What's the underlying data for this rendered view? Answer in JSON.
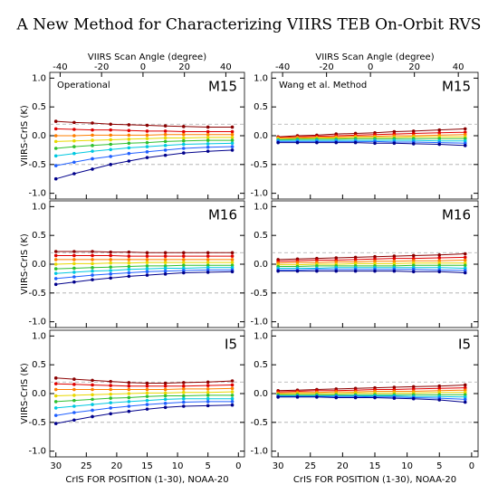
{
  "title": "A New Method for Characterizing VIIRS TEB On-Orbit RVS",
  "chart_data": [
    {
      "type": "line",
      "method": "Operational",
      "band": "M15",
      "ylabel": "VIIRS-CrIS (K)",
      "x2label": "VIIRS Scan Angle (degree)",
      "x2lim": [
        -45,
        49
      ],
      "x2ticks": [
        -40,
        -20,
        0,
        20,
        40
      ],
      "x": [
        30,
        27,
        24,
        21,
        18,
        15,
        12,
        9,
        5,
        1
      ],
      "xlim": [
        31,
        -1
      ],
      "xticks": [
        30,
        25,
        20,
        15,
        10,
        5,
        0
      ],
      "ylim": [
        -1.1,
        1.1
      ],
      "yticks": [
        {
          "value": 1,
          "label": "1.0"
        },
        {
          "value": 0.5,
          "label": "0.5"
        },
        {
          "value": 0,
          "label": "0.0"
        },
        {
          "value": -0.5,
          "label": "-0.5"
        },
        {
          "value": -1,
          "label": "-1.0"
        }
      ],
      "ref_lines": [
        0.2,
        -0.5
      ],
      "series": [
        {
          "color": "#8b0000",
          "values": [
            0.25,
            0.23,
            0.22,
            0.2,
            0.19,
            0.18,
            0.17,
            0.16,
            0.15,
            0.15
          ]
        },
        {
          "color": "#e00000",
          "values": [
            0.12,
            0.11,
            0.1,
            0.1,
            0.09,
            0.08,
            0.08,
            0.07,
            0.07,
            0.07
          ]
        },
        {
          "color": "#ff7f00",
          "values": [
            0.0,
            0.0,
            0.01,
            0.01,
            0.01,
            0.01,
            0.02,
            0.02,
            0.02,
            0.02
          ]
        },
        {
          "color": "#e8d800",
          "values": [
            -0.1,
            -0.09,
            -0.08,
            -0.07,
            -0.06,
            -0.05,
            -0.04,
            -0.04,
            -0.03,
            -0.03
          ]
        },
        {
          "color": "#30c030",
          "values": [
            -0.22,
            -0.19,
            -0.17,
            -0.15,
            -0.13,
            -0.12,
            -0.1,
            -0.09,
            -0.08,
            -0.08
          ]
        },
        {
          "color": "#00c8e0",
          "values": [
            -0.35,
            -0.31,
            -0.27,
            -0.24,
            -0.21,
            -0.19,
            -0.17,
            -0.15,
            -0.14,
            -0.13
          ]
        },
        {
          "color": "#2060ff",
          "values": [
            -0.52,
            -0.46,
            -0.4,
            -0.36,
            -0.31,
            -0.28,
            -0.25,
            -0.22,
            -0.2,
            -0.19
          ]
        },
        {
          "color": "#00008b",
          "values": [
            -0.75,
            -0.66,
            -0.58,
            -0.5,
            -0.44,
            -0.38,
            -0.34,
            -0.3,
            -0.27,
            -0.25
          ]
        }
      ]
    },
    {
      "type": "line",
      "method": "Wang et al. Method",
      "band": "M15",
      "x2label": "VIIRS Scan Angle (degree)",
      "x2lim": [
        -45,
        49
      ],
      "x2ticks": [
        -40,
        -20,
        0,
        20,
        40
      ],
      "x": [
        30,
        27,
        24,
        21,
        18,
        15,
        12,
        9,
        5,
        1
      ],
      "xlim": [
        31,
        -1
      ],
      "xticks": [
        30,
        25,
        20,
        15,
        10,
        5,
        0
      ],
      "ylim": [
        -1.1,
        1.1
      ],
      "yticks": [
        {
          "value": 1,
          "label": "1.0"
        },
        {
          "value": 0.5,
          "label": "0.5"
        },
        {
          "value": 0,
          "label": "0.0"
        },
        {
          "value": -0.5,
          "label": "-0.5"
        },
        {
          "value": -1,
          "label": "-1.0"
        }
      ],
      "ref_lines": [
        0.2,
        -0.5
      ],
      "series": [
        {
          "color": "#8b0000",
          "values": [
            -0.02,
            0.0,
            0.01,
            0.03,
            0.04,
            0.05,
            0.07,
            0.08,
            0.1,
            0.12
          ]
        },
        {
          "color": "#e00000",
          "values": [
            -0.03,
            -0.02,
            -0.01,
            0.0,
            0.01,
            0.02,
            0.03,
            0.04,
            0.05,
            0.06
          ]
        },
        {
          "color": "#ff7f00",
          "values": [
            -0.04,
            -0.03,
            -0.03,
            -0.02,
            -0.01,
            -0.01,
            0.0,
            0.0,
            0.01,
            0.02
          ]
        },
        {
          "color": "#e8d800",
          "values": [
            -0.05,
            -0.05,
            -0.04,
            -0.04,
            -0.03,
            -0.03,
            -0.03,
            -0.02,
            -0.02,
            -0.02
          ]
        },
        {
          "color": "#30c030",
          "values": [
            -0.07,
            -0.06,
            -0.06,
            -0.06,
            -0.05,
            -0.05,
            -0.05,
            -0.05,
            -0.05,
            -0.05
          ]
        },
        {
          "color": "#00c8e0",
          "values": [
            -0.08,
            -0.08,
            -0.08,
            -0.08,
            -0.08,
            -0.08,
            -0.08,
            -0.08,
            -0.09,
            -0.09
          ]
        },
        {
          "color": "#2060ff",
          "values": [
            -0.1,
            -0.1,
            -0.1,
            -0.1,
            -0.1,
            -0.1,
            -0.11,
            -0.11,
            -0.12,
            -0.13
          ]
        },
        {
          "color": "#00008b",
          "values": [
            -0.12,
            -0.12,
            -0.12,
            -0.12,
            -0.12,
            -0.13,
            -0.13,
            -0.14,
            -0.15,
            -0.17
          ]
        }
      ]
    },
    {
      "type": "line",
      "band": "M16",
      "ylabel": "VIIRS-CrIS (K)",
      "x": [
        30,
        27,
        24,
        21,
        18,
        15,
        12,
        9,
        5,
        1
      ],
      "xlim": [
        31,
        -1
      ],
      "xticks": [
        30,
        25,
        20,
        15,
        10,
        5,
        0
      ],
      "ylim": [
        -1.1,
        1.1
      ],
      "yticks": [
        {
          "value": 1,
          "label": "1.0"
        },
        {
          "value": 0.5,
          "label": "0.5"
        },
        {
          "value": 0,
          "label": "0.0"
        },
        {
          "value": -0.5,
          "label": "-0.5"
        },
        {
          "value": -1,
          "label": "-1.0"
        }
      ],
      "ref_lines": [
        0.2,
        -0.5
      ],
      "series": [
        {
          "color": "#8b0000",
          "values": [
            0.22,
            0.22,
            0.22,
            0.21,
            0.21,
            0.2,
            0.2,
            0.2,
            0.2,
            0.2
          ]
        },
        {
          "color": "#e00000",
          "values": [
            0.15,
            0.15,
            0.15,
            0.15,
            0.14,
            0.14,
            0.14,
            0.14,
            0.14,
            0.14
          ]
        },
        {
          "color": "#ff7f00",
          "values": [
            0.08,
            0.08,
            0.08,
            0.08,
            0.08,
            0.08,
            0.08,
            0.08,
            0.08,
            0.08
          ]
        },
        {
          "color": "#e8d800",
          "values": [
            0.0,
            0.01,
            0.01,
            0.02,
            0.02,
            0.03,
            0.03,
            0.03,
            0.03,
            0.03
          ]
        },
        {
          "color": "#30c030",
          "values": [
            -0.08,
            -0.07,
            -0.06,
            -0.05,
            -0.04,
            -0.03,
            -0.03,
            -0.02,
            -0.02,
            -0.02
          ]
        },
        {
          "color": "#00c8e0",
          "values": [
            -0.16,
            -0.14,
            -0.12,
            -0.11,
            -0.09,
            -0.08,
            -0.07,
            -0.07,
            -0.06,
            -0.06
          ]
        },
        {
          "color": "#2060ff",
          "values": [
            -0.25,
            -0.22,
            -0.19,
            -0.17,
            -0.15,
            -0.13,
            -0.12,
            -0.11,
            -0.1,
            -0.1
          ]
        },
        {
          "color": "#00008b",
          "values": [
            -0.35,
            -0.31,
            -0.27,
            -0.24,
            -0.21,
            -0.19,
            -0.17,
            -0.15,
            -0.14,
            -0.13
          ]
        }
      ]
    },
    {
      "type": "line",
      "band": "M16",
      "x": [
        30,
        27,
        24,
        21,
        18,
        15,
        12,
        9,
        5,
        1
      ],
      "xlim": [
        31,
        -1
      ],
      "xticks": [
        30,
        25,
        20,
        15,
        10,
        5,
        0
      ],
      "ylim": [
        -1.1,
        1.1
      ],
      "yticks": [
        {
          "value": 1,
          "label": "1.0"
        },
        {
          "value": 0.5,
          "label": "0.5"
        },
        {
          "value": 0,
          "label": "0.0"
        },
        {
          "value": -0.5,
          "label": "-0.5"
        },
        {
          "value": -1,
          "label": "-1.0"
        }
      ],
      "ref_lines": [
        0.2,
        -0.5
      ],
      "series": [
        {
          "color": "#8b0000",
          "values": [
            0.08,
            0.09,
            0.1,
            0.11,
            0.12,
            0.13,
            0.14,
            0.15,
            0.16,
            0.18
          ]
        },
        {
          "color": "#e00000",
          "values": [
            0.05,
            0.06,
            0.07,
            0.07,
            0.08,
            0.09,
            0.1,
            0.1,
            0.11,
            0.12
          ]
        },
        {
          "color": "#ff7f00",
          "values": [
            0.02,
            0.03,
            0.03,
            0.04,
            0.04,
            0.05,
            0.05,
            0.06,
            0.06,
            0.07
          ]
        },
        {
          "color": "#e8d800",
          "values": [
            -0.01,
            -0.01,
            0.0,
            0.0,
            0.01,
            0.01,
            0.01,
            0.02,
            0.02,
            0.02
          ]
        },
        {
          "color": "#30c030",
          "values": [
            -0.04,
            -0.04,
            -0.03,
            -0.03,
            -0.03,
            -0.03,
            -0.03,
            -0.02,
            -0.02,
            -0.02
          ]
        },
        {
          "color": "#00c8e0",
          "values": [
            -0.07,
            -0.07,
            -0.07,
            -0.06,
            -0.06,
            -0.06,
            -0.06,
            -0.06,
            -0.06,
            -0.07
          ]
        },
        {
          "color": "#2060ff",
          "values": [
            -0.1,
            -0.1,
            -0.09,
            -0.09,
            -0.09,
            -0.09,
            -0.09,
            -0.09,
            -0.1,
            -0.11
          ]
        },
        {
          "color": "#00008b",
          "values": [
            -0.12,
            -0.12,
            -0.12,
            -0.12,
            -0.12,
            -0.12,
            -0.12,
            -0.13,
            -0.13,
            -0.15
          ]
        }
      ]
    },
    {
      "type": "line",
      "band": "I5",
      "ylabel": "VIIRS-CrIS (K)",
      "xlabel": "CrIS FOR POSITION (1-30), NOAA-20",
      "x": [
        30,
        27,
        24,
        21,
        18,
        15,
        12,
        9,
        5,
        1
      ],
      "xlim": [
        31,
        -1
      ],
      "xticks": [
        30,
        25,
        20,
        15,
        10,
        5,
        0
      ],
      "ylim": [
        -1.1,
        1.1
      ],
      "yticks": [
        {
          "value": 1,
          "label": "1.0"
        },
        {
          "value": 0.5,
          "label": "0.5"
        },
        {
          "value": 0,
          "label": "0.0"
        },
        {
          "value": -0.5,
          "label": "-0.5"
        },
        {
          "value": -1,
          "label": "-1.0"
        }
      ],
      "ref_lines": [
        0.2,
        -0.5
      ],
      "series": [
        {
          "color": "#8b0000",
          "values": [
            0.27,
            0.25,
            0.23,
            0.21,
            0.19,
            0.18,
            0.18,
            0.19,
            0.2,
            0.22
          ]
        },
        {
          "color": "#e00000",
          "values": [
            0.17,
            0.16,
            0.15,
            0.14,
            0.13,
            0.13,
            0.13,
            0.13,
            0.14,
            0.15
          ]
        },
        {
          "color": "#ff7f00",
          "values": [
            0.07,
            0.07,
            0.07,
            0.07,
            0.07,
            0.07,
            0.07,
            0.08,
            0.08,
            0.09
          ]
        },
        {
          "color": "#e8d800",
          "values": [
            -0.04,
            -0.03,
            -0.02,
            -0.01,
            0.0,
            0.01,
            0.01,
            0.02,
            0.02,
            0.03
          ]
        },
        {
          "color": "#30c030",
          "values": [
            -0.14,
            -0.12,
            -0.1,
            -0.08,
            -0.07,
            -0.05,
            -0.04,
            -0.04,
            -0.03,
            -0.03
          ]
        },
        {
          "color": "#00c8e0",
          "values": [
            -0.25,
            -0.22,
            -0.19,
            -0.16,
            -0.14,
            -0.12,
            -0.1,
            -0.09,
            -0.09,
            -0.09
          ]
        },
        {
          "color": "#2060ff",
          "values": [
            -0.38,
            -0.33,
            -0.29,
            -0.25,
            -0.22,
            -0.19,
            -0.17,
            -0.15,
            -0.14,
            -0.14
          ]
        },
        {
          "color": "#00008b",
          "values": [
            -0.52,
            -0.46,
            -0.4,
            -0.35,
            -0.31,
            -0.27,
            -0.24,
            -0.22,
            -0.21,
            -0.2
          ]
        }
      ]
    },
    {
      "type": "line",
      "band": "I5",
      "xlabel": "CrIS FOR POSITION (1-30), NOAA-20",
      "x": [
        30,
        27,
        24,
        21,
        18,
        15,
        12,
        9,
        5,
        1
      ],
      "xlim": [
        31,
        -1
      ],
      "xticks": [
        30,
        25,
        20,
        15,
        10,
        5,
        0
      ],
      "ylim": [
        -1.1,
        1.1
      ],
      "yticks": [
        {
          "value": 1,
          "label": "1.0"
        },
        {
          "value": 0.5,
          "label": "0.5"
        },
        {
          "value": 0,
          "label": "0.0"
        },
        {
          "value": -0.5,
          "label": "-0.5"
        },
        {
          "value": -1,
          "label": "-1.0"
        }
      ],
      "ref_lines": [
        0.2,
        -0.5
      ],
      "series": [
        {
          "color": "#8b0000",
          "values": [
            0.05,
            0.06,
            0.07,
            0.08,
            0.09,
            0.1,
            0.11,
            0.12,
            0.13,
            0.15
          ]
        },
        {
          "color": "#e00000",
          "values": [
            0.03,
            0.04,
            0.05,
            0.05,
            0.06,
            0.07,
            0.07,
            0.08,
            0.09,
            0.1
          ]
        },
        {
          "color": "#ff7f00",
          "values": [
            0.01,
            0.02,
            0.02,
            0.03,
            0.03,
            0.04,
            0.04,
            0.04,
            0.05,
            0.06
          ]
        },
        {
          "color": "#e8d800",
          "values": [
            -0.01,
            0.0,
            0.0,
            0.0,
            0.01,
            0.01,
            0.01,
            0.01,
            0.02,
            0.02
          ]
        },
        {
          "color": "#30c030",
          "values": [
            -0.02,
            -0.02,
            -0.02,
            -0.02,
            -0.02,
            -0.02,
            -0.02,
            -0.02,
            -0.02,
            -0.02
          ]
        },
        {
          "color": "#00c8e0",
          "values": [
            -0.04,
            -0.04,
            -0.04,
            -0.04,
            -0.04,
            -0.04,
            -0.04,
            -0.05,
            -0.05,
            -0.06
          ]
        },
        {
          "color": "#2060ff",
          "values": [
            -0.05,
            -0.05,
            -0.05,
            -0.05,
            -0.05,
            -0.06,
            -0.06,
            -0.07,
            -0.08,
            -0.1
          ]
        },
        {
          "color": "#00008b",
          "values": [
            -0.06,
            -0.06,
            -0.06,
            -0.07,
            -0.07,
            -0.07,
            -0.08,
            -0.09,
            -0.11,
            -0.15
          ]
        }
      ]
    }
  ]
}
